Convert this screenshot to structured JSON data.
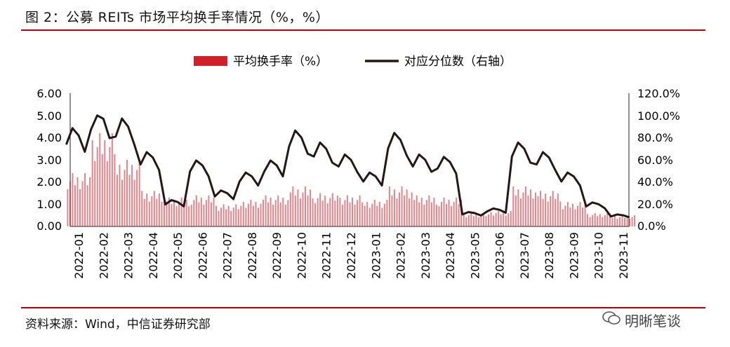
{
  "title": "图 2：公募 REITs 市场平均换手率情况（%，%）",
  "source": "资料来源：Wind，中信证券研究部",
  "watermark": "明晰笔谈",
  "chart_data": {
    "type": "bar",
    "legend": {
      "bar": "平均换手率（%）",
      "line": "对应分位数（右轴）",
      "placement": "top-center"
    },
    "colors": {
      "bar": "#d0202a",
      "line": "#231815",
      "rule": "#c00000"
    },
    "y_left": {
      "ticks": [
        "6.00",
        "5.00",
        "4.00",
        "3.00",
        "2.00",
        "1.00",
        "0.00"
      ],
      "ylim": [
        0,
        6
      ]
    },
    "y_right": {
      "ticks": [
        "120.0%",
        "100.0%",
        "80.0%",
        "60.0%",
        "40.0%",
        "20.0%",
        "0.0%"
      ],
      "ylim": [
        0,
        1.2
      ]
    },
    "x_ticks": [
      "2022-01",
      "2022-02",
      "2022-03",
      "2022-04",
      "2022-05",
      "2022-06",
      "2022-07",
      "2022-08",
      "2022-09",
      "2022-10",
      "2022-11",
      "2022-12",
      "2023-01",
      "2023-02",
      "2023-03",
      "2023-04",
      "2023-05",
      "2023-06",
      "2023-07",
      "2023-08",
      "2023-09",
      "2023-10",
      "2023-11"
    ],
    "monthly_turnover": [
      2.4,
      4.2,
      3.0,
      1.6,
      1.3,
      1.4,
      1.0,
      1.2,
      1.4,
      1.8,
      1.5,
      1.4,
      1.2,
      1.8,
      1.4,
      1.3,
      0.6,
      0.7,
      1.8,
      1.6,
      1.1,
      0.6,
      0.5
    ],
    "monthly_quantile": [
      0.82,
      0.97,
      0.9,
      0.62,
      0.22,
      0.55,
      0.3,
      0.45,
      0.55,
      0.8,
      0.7,
      0.6,
      0.45,
      0.78,
      0.6,
      0.58,
      0.12,
      0.15,
      0.7,
      0.62,
      0.45,
      0.2,
      0.1
    ]
  }
}
